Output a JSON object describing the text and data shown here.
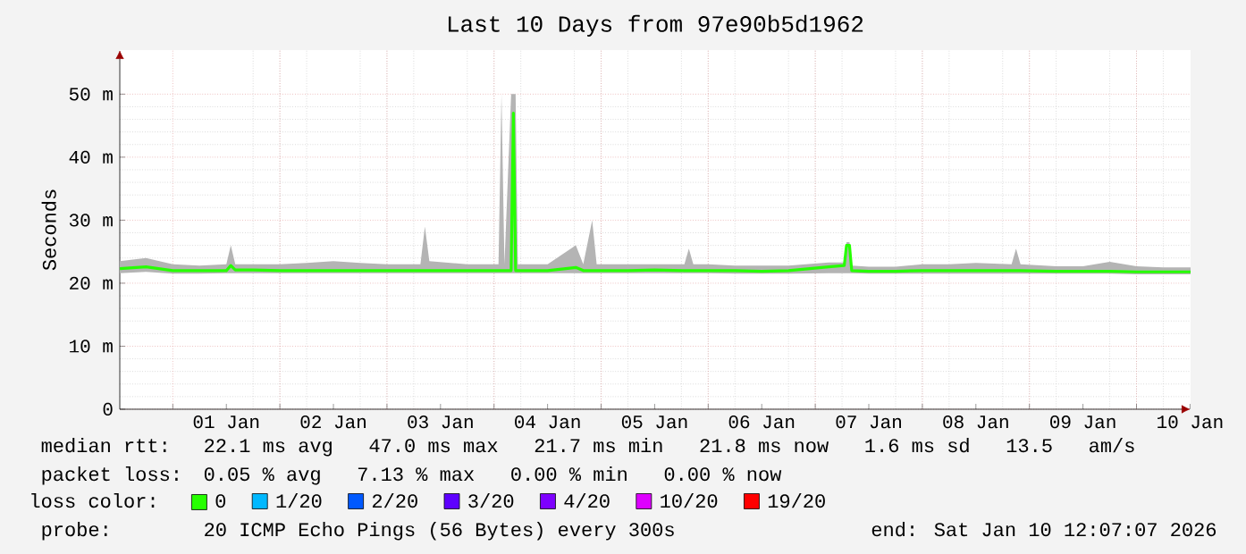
{
  "chart_data": {
    "type": "line",
    "title": "Last 10 Days from 97e90b5d1962",
    "ylabel": "Seconds",
    "x": [
      "2025-12-31T12:07",
      "2025-12-31T18:00",
      "2026-01-01T00:00",
      "2026-01-01T06:00",
      "2026-01-01T12:00",
      "2026-01-01T13:00",
      "2026-01-01T14:00",
      "2026-01-01T18:00",
      "2026-01-02T00:00",
      "2026-01-02T06:00",
      "2026-01-02T12:00",
      "2026-01-02T18:00",
      "2026-01-03T00:00",
      "2026-01-03T07:30",
      "2026-01-03T08:30",
      "2026-01-03T09:30",
      "2026-01-03T18:00",
      "2026-01-04T01:00",
      "2026-01-04T01:40",
      "2026-01-04T02:20",
      "2026-01-04T03:50",
      "2026-01-04T04:20",
      "2026-01-04T04:50",
      "2026-01-04T05:20",
      "2026-01-04T12:00",
      "2026-01-04T18:20",
      "2026-01-04T20:00",
      "2026-01-04T22:00",
      "2026-01-04T23:00",
      "2026-01-05T06:00",
      "2026-01-05T12:00",
      "2026-01-05T18:40",
      "2026-01-05T19:40",
      "2026-01-05T20:40",
      "2026-01-06T00:00",
      "2026-01-06T06:00",
      "2026-01-06T12:00",
      "2026-01-06T18:00",
      "2026-01-07T03:00",
      "2026-01-07T06:30",
      "2026-01-07T07:00",
      "2026-01-07T07:40",
      "2026-01-07T08:10",
      "2026-01-07T12:00",
      "2026-01-07T18:00",
      "2026-01-08T00:00",
      "2026-01-08T06:00",
      "2026-01-08T12:00",
      "2026-01-08T20:00",
      "2026-01-08T21:00",
      "2026-01-08T22:00",
      "2026-01-09T06:00",
      "2026-01-09T12:00",
      "2026-01-09T18:00",
      "2026-01-10T00:00",
      "2026-01-10T06:00",
      "2026-01-10T12:07"
    ],
    "series": [
      {
        "name": "0",
        "color": "#26ff00",
        "values": [
          22.3,
          22.6,
          22.0,
          22.0,
          22.0,
          22.8,
          22.1,
          22.1,
          22.0,
          22.0,
          22.0,
          22.0,
          22.0,
          22.0,
          22.0,
          22.0,
          22.0,
          22.0,
          22.0,
          22.0,
          22.0,
          47.0,
          22.0,
          22.0,
          22.0,
          22.5,
          22.0,
          22.0,
          22.0,
          22.0,
          22.1,
          22.0,
          22.0,
          22.0,
          22.0,
          22.0,
          21.9,
          22.0,
          22.6,
          22.8,
          26.0,
          26.0,
          22.0,
          21.9,
          21.9,
          22.0,
          22.0,
          22.0,
          22.0,
          22.0,
          22.0,
          21.9,
          21.9,
          21.9,
          21.8,
          21.8,
          21.8
        ],
        "lower": [
          21.6,
          21.8,
          21.5,
          21.5,
          21.6,
          21.6,
          21.6,
          21.6,
          21.6,
          21.6,
          21.6,
          21.6,
          21.6,
          21.6,
          21.6,
          21.6,
          21.6,
          21.6,
          21.6,
          21.6,
          21.6,
          21.6,
          21.6,
          21.6,
          21.6,
          21.6,
          21.6,
          21.6,
          21.6,
          21.6,
          21.6,
          21.6,
          21.6,
          21.6,
          21.6,
          21.5,
          21.5,
          21.5,
          21.6,
          21.6,
          21.6,
          21.6,
          21.6,
          21.5,
          21.5,
          21.5,
          21.5,
          21.5,
          21.5,
          21.5,
          21.5,
          21.5,
          21.5,
          21.5,
          21.4,
          21.4,
          21.4
        ],
        "upper": [
          23.5,
          24.0,
          23.0,
          22.8,
          23.0,
          26.0,
          23.0,
          23.0,
          23.0,
          23.2,
          23.5,
          23.2,
          23.0,
          23.0,
          29.0,
          23.5,
          23.0,
          23.0,
          50.0,
          23.0,
          50.0,
          50.0,
          50.0,
          23.0,
          23.0,
          26.0,
          23.0,
          30.0,
          23.0,
          23.0,
          23.0,
          23.0,
          25.5,
          23.0,
          23.0,
          22.8,
          22.8,
          22.8,
          23.3,
          23.3,
          26.5,
          26.5,
          22.8,
          22.6,
          22.6,
          23.0,
          23.0,
          23.2,
          23.0,
          25.5,
          23.0,
          22.7,
          22.7,
          23.4,
          22.7,
          22.5,
          22.5
        ]
      },
      {
        "name": "1/20",
        "color": "#00b8ff",
        "values": [
          null,
          null,
          null,
          null,
          null,
          null,
          null,
          null,
          null,
          null,
          null,
          null,
          null,
          null,
          null,
          null,
          null,
          null,
          null,
          null,
          null,
          null,
          null,
          null,
          null,
          null,
          null,
          null,
          null,
          null,
          null,
          null,
          null,
          null,
          null,
          null,
          null,
          null,
          null,
          null,
          null,
          null,
          null,
          null,
          null,
          null,
          null,
          null,
          null,
          null,
          null,
          null,
          null,
          null,
          null,
          null,
          null
        ]
      },
      {
        "name": "2/20",
        "color": "#0059ff",
        "values": [
          null,
          null,
          null,
          null,
          null,
          null,
          null,
          null,
          null,
          null,
          null,
          null,
          null,
          null,
          null,
          null,
          null,
          null,
          null,
          null,
          null,
          null,
          null,
          null,
          null,
          null,
          null,
          null,
          null,
          null,
          null,
          null,
          null,
          null,
          null,
          null,
          null,
          null,
          null,
          null,
          null,
          null,
          null,
          null,
          null,
          null,
          null,
          null,
          null,
          null,
          null,
          null,
          null,
          null,
          null,
          null,
          null
        ]
      },
      {
        "name": "3/20",
        "color": "#5e00ff",
        "values": [
          null,
          null,
          null,
          null,
          null,
          null,
          null,
          null,
          null,
          null,
          null,
          null,
          null,
          null,
          null,
          null,
          null,
          null,
          null,
          null,
          null,
          null,
          null,
          null,
          null,
          null,
          null,
          null,
          null,
          null,
          null,
          null,
          null,
          null,
          null,
          null,
          null,
          null,
          null,
          null,
          null,
          null,
          null,
          null,
          null,
          null,
          null,
          null,
          null,
          null,
          null,
          null,
          null,
          null,
          null,
          null,
          null
        ]
      },
      {
        "name": "4/20",
        "color": "#7e00ff",
        "values": [
          null,
          null,
          null,
          null,
          null,
          null,
          null,
          null,
          null,
          null,
          null,
          null,
          null,
          null,
          null,
          null,
          null,
          null,
          null,
          null,
          null,
          null,
          null,
          null,
          null,
          null,
          null,
          null,
          null,
          null,
          null,
          null,
          null,
          null,
          null,
          null,
          null,
          null,
          null,
          null,
          null,
          null,
          null,
          null,
          null,
          null,
          null,
          null,
          null,
          null,
          null,
          null,
          null,
          null,
          null,
          null,
          null
        ]
      },
      {
        "name": "10/20",
        "color": "#dd00ff",
        "values": [
          null,
          null,
          null,
          null,
          null,
          null,
          null,
          null,
          null,
          null,
          null,
          null,
          null,
          null,
          null,
          null,
          null,
          null,
          null,
          null,
          null,
          null,
          null,
          null,
          null,
          null,
          null,
          null,
          null,
          null,
          null,
          null,
          null,
          null,
          null,
          null,
          null,
          null,
          null,
          null,
          null,
          null,
          null,
          null,
          null,
          null,
          null,
          null,
          null,
          null,
          null,
          null,
          null,
          null,
          null,
          null,
          null
        ]
      },
      {
        "name": "19/20",
        "color": "#ff0000",
        "values": [
          null,
          null,
          null,
          null,
          null,
          null,
          null,
          null,
          null,
          null,
          null,
          null,
          null,
          null,
          null,
          null,
          null,
          null,
          null,
          null,
          null,
          null,
          null,
          null,
          null,
          null,
          null,
          null,
          null,
          null,
          null,
          null,
          null,
          null,
          null,
          null,
          null,
          null,
          null,
          null,
          null,
          null,
          null,
          null,
          null,
          null,
          null,
          null,
          null,
          null,
          null,
          null,
          null,
          null,
          null,
          null,
          null
        ]
      }
    ],
    "xlim": [
      "2025-12-31T12:07",
      "2026-01-10T12:07"
    ],
    "xticks": [
      {
        "value": "2026-01-01T12:00",
        "label": "01 Jan"
      },
      {
        "value": "2026-01-02T12:00",
        "label": "02 Jan"
      },
      {
        "value": "2026-01-03T12:00",
        "label": "03 Jan"
      },
      {
        "value": "2026-01-04T12:00",
        "label": "04 Jan"
      },
      {
        "value": "2026-01-05T12:00",
        "label": "05 Jan"
      },
      {
        "value": "2026-01-06T12:00",
        "label": "06 Jan"
      },
      {
        "value": "2026-01-07T12:00",
        "label": "07 Jan"
      },
      {
        "value": "2026-01-08T12:00",
        "label": "08 Jan"
      },
      {
        "value": "2026-01-09T12:00",
        "label": "09 Jan"
      },
      {
        "value": "2026-01-10T12:00",
        "label": "10 Jan"
      },
      {
        "value": "2026-01-01T00:00",
        "label": null
      },
      {
        "value": "2026-01-02T00:00",
        "label": null
      },
      {
        "value": "2026-01-03T00:00",
        "label": null
      },
      {
        "value": "2026-01-04T00:00",
        "label": null
      },
      {
        "value": "2026-01-05T00:00",
        "label": null
      },
      {
        "value": "2026-01-06T00:00",
        "label": null
      },
      {
        "value": "2026-01-07T00:00",
        "label": null
      },
      {
        "value": "2026-01-08T00:00",
        "label": null
      },
      {
        "value": "2026-01-09T00:00",
        "label": null
      },
      {
        "value": "2026-01-10T00:00",
        "label": null
      }
    ],
    "ylim": [
      0,
      57
    ],
    "yticks": [
      0,
      {
        "value": 10,
        "label": "10 m"
      },
      {
        "value": 20,
        "label": "20 m"
      },
      {
        "value": 30,
        "label": "30 m"
      },
      {
        "value": 40,
        "label": "40 m"
      },
      {
        "value": 50,
        "label": "50 m"
      }
    ],
    "grid": true,
    "legend": "bottom",
    "legend_title": "loss color:",
    "annotations": [
      "median rtt:",
      "22.1 ms avg   47.0 ms max   21.7 ms min   21.8 ms now   1.6 ms sd   13.5   am/s",
      "packet loss:",
      "0.05 % avg   7.13 % max   0.00 % min   0.00 % now",
      "probe:",
      "20 ICMP Echo Pings (56 Bytes) every 300s",
      "end: Sat Jan 10 12:07:07 2026"
    ]
  }
}
